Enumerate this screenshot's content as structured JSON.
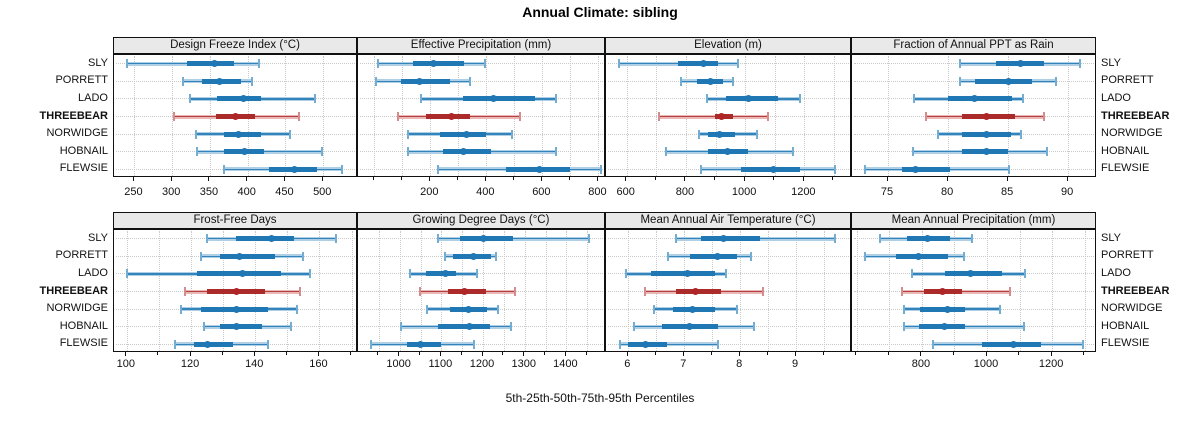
{
  "title": "Annual Climate: sibling",
  "caption": "5th-25th-50th-75th-95th Percentiles",
  "stations": [
    {
      "name": "SLY",
      "bold": false
    },
    {
      "name": "PORRETT",
      "bold": false
    },
    {
      "name": "LADO",
      "bold": false
    },
    {
      "name": "THREEBEAR",
      "bold": true
    },
    {
      "name": "NORWIDGE",
      "bold": false
    },
    {
      "name": "HOBNAIL",
      "bold": false
    },
    {
      "name": "FLEWSIE",
      "bold": false
    }
  ],
  "highlight_station": "THREEBEAR",
  "colors": {
    "normal": {
      "main": "#1f77b4",
      "band": "#aecfe6",
      "cap": "#74add2",
      "dot": "#1f77b4"
    },
    "highlight": {
      "main": "#ab2b2b",
      "band": "#eab7b7",
      "cap": "#d68c8c",
      "dot": "#b02525"
    },
    "grid": "#c9c9c9",
    "strip_bg": "#e9e9e9",
    "border": "#111111"
  },
  "chart_data": [
    {
      "type": "dotplot-intervals",
      "title": "Design Freeze Index (°C)",
      "xlim": [
        223,
        546
      ],
      "ticks": [
        250,
        300,
        350,
        400,
        450,
        500
      ],
      "minor_ticks": [],
      "percentile_levels": [
        5,
        25,
        50,
        75,
        95
      ],
      "series": [
        {
          "station": "SLY",
          "p": [
            240,
            320,
            356,
            382,
            415
          ]
        },
        {
          "station": "PORRETT",
          "p": [
            315,
            340,
            362,
            391,
            406
          ]
        },
        {
          "station": "LADO",
          "p": [
            324,
            359,
            395,
            418,
            489
          ]
        },
        {
          "station": "THREEBEAR",
          "p": [
            303,
            358,
            384,
            410,
            468
          ]
        },
        {
          "station": "NORWIDGE",
          "p": [
            331,
            369,
            388,
            417,
            456
          ]
        },
        {
          "station": "HOBNAIL",
          "p": [
            333,
            368,
            396,
            421,
            498
          ]
        },
        {
          "station": "FLEWSIE",
          "p": [
            369,
            428,
            462,
            492,
            525
          ]
        }
      ]
    },
    {
      "type": "dotplot-intervals",
      "title": "Effective Precipitation (mm)",
      "xlim": [
        -58,
        827
      ],
      "ticks": [
        200,
        400,
        600,
        800
      ],
      "minor_ticks": [
        0,
        100,
        300,
        500,
        700
      ],
      "percentile_levels": [
        5,
        25,
        50,
        75,
        95
      ],
      "series": [
        {
          "station": "SLY",
          "p": [
            15,
            140,
            210,
            320,
            395
          ]
        },
        {
          "station": "PORRETT",
          "p": [
            5,
            95,
            162,
            270,
            340
          ]
        },
        {
          "station": "LADO",
          "p": [
            168,
            317,
            427,
            573,
            650
          ]
        },
        {
          "station": "THREEBEAR",
          "p": [
            85,
            185,
            275,
            340,
            520
          ]
        },
        {
          "station": "NORWIDGE",
          "p": [
            120,
            233,
            329,
            400,
            490
          ]
        },
        {
          "station": "HOBNAIL",
          "p": [
            120,
            245,
            318,
            418,
            650
          ]
        },
        {
          "station": "FLEWSIE",
          "p": [
            227,
            470,
            590,
            697,
            810
          ]
        }
      ]
    },
    {
      "type": "dotplot-intervals",
      "title": "Elevation (m)",
      "xlim": [
        530,
        1361
      ],
      "ticks": [
        600,
        800,
        1000,
        1200
      ],
      "minor_ticks": [
        700,
        900,
        1100,
        1300
      ],
      "percentile_levels": [
        5,
        25,
        50,
        75,
        95
      ],
      "series": [
        {
          "station": "SLY",
          "p": [
            575,
            772,
            858,
            909,
            977
          ]
        },
        {
          "station": "PORRETT",
          "p": [
            785,
            836,
            884,
            926,
            960
          ]
        },
        {
          "station": "LADO",
          "p": [
            870,
            937,
            1011,
            1112,
            1185
          ]
        },
        {
          "station": "THREEBEAR",
          "p": [
            708,
            898,
            920,
            960,
            1078
          ]
        },
        {
          "station": "NORWIDGE",
          "p": [
            845,
            875,
            915,
            966,
            1039
          ]
        },
        {
          "station": "HOBNAIL",
          "p": [
            733,
            875,
            940,
            1010,
            1163
          ]
        },
        {
          "station": "FLEWSIE",
          "p": [
            850,
            985,
            1095,
            1185,
            1303
          ]
        }
      ]
    },
    {
      "type": "dotplot-intervals",
      "title": "Fraction of Annual PPT as Rain",
      "xlim": [
        72,
        92.4
      ],
      "ticks": [
        75,
        80,
        85,
        90
      ],
      "minor_ticks": [],
      "percentile_levels": [
        5,
        25,
        50,
        75,
        95
      ],
      "series": [
        {
          "station": "SLY",
          "p": [
            81,
            84,
            86,
            88,
            91
          ]
        },
        {
          "station": "PORRETT",
          "p": [
            81,
            82.2,
            85,
            87,
            89
          ]
        },
        {
          "station": "LADO",
          "p": [
            77.2,
            80,
            82.2,
            85.3,
            86.2
          ]
        },
        {
          "station": "THREEBEAR",
          "p": [
            78.2,
            81.2,
            83.2,
            85.6,
            88
          ]
        },
        {
          "station": "NORWIDGE",
          "p": [
            79.2,
            81.2,
            83.2,
            85.2,
            86.1
          ]
        },
        {
          "station": "HOBNAIL",
          "p": [
            77.1,
            81.2,
            83.2,
            85,
            88.2
          ]
        },
        {
          "station": "FLEWSIE",
          "p": [
            73.1,
            76.2,
            77.3,
            80.2,
            85.1
          ]
        }
      ]
    },
    {
      "type": "dotplot-intervals",
      "title": "Frost-Free Days",
      "xlim": [
        96,
        172
      ],
      "ticks": [
        100,
        120,
        140,
        160
      ],
      "minor_ticks": [
        110,
        130,
        150,
        170
      ],
      "percentile_levels": [
        5,
        25,
        50,
        75,
        95
      ],
      "series": [
        {
          "station": "SLY",
          "p": [
            125,
            134,
            145,
            152,
            165
          ]
        },
        {
          "station": "PORRETT",
          "p": [
            123,
            129,
            135,
            146,
            155
          ]
        },
        {
          "station": "LADO",
          "p": [
            100,
            122,
            136,
            148,
            157
          ]
        },
        {
          "station": "THREEBEAR",
          "p": [
            118,
            125,
            134,
            143,
            154
          ]
        },
        {
          "station": "NORWIDGE",
          "p": [
            117,
            123,
            134,
            144,
            153
          ]
        },
        {
          "station": "HOBNAIL",
          "p": [
            124,
            129,
            134,
            142,
            151
          ]
        },
        {
          "station": "FLEWSIE",
          "p": [
            115,
            121,
            125,
            133,
            144
          ]
        }
      ]
    },
    {
      "type": "dotplot-intervals",
      "title": "Growing Degree Days (°C)",
      "xlim": [
        900,
        1495
      ],
      "ticks": [
        1000,
        1100,
        1200,
        1300,
        1400
      ],
      "minor_ticks": [
        950,
        1050,
        1150,
        1250,
        1350,
        1450
      ],
      "percentile_levels": [
        5,
        25,
        50,
        75,
        95
      ],
      "series": [
        {
          "station": "SLY",
          "p": [
            1092,
            1144,
            1202,
            1272,
            1454
          ]
        },
        {
          "station": "PORRETT",
          "p": [
            1108,
            1128,
            1176,
            1220,
            1232
          ]
        },
        {
          "station": "LADO",
          "p": [
            1024,
            1064,
            1110,
            1136,
            1186
          ]
        },
        {
          "station": "THREEBEAR",
          "p": [
            1048,
            1116,
            1155,
            1208,
            1276
          ]
        },
        {
          "station": "NORWIDGE",
          "p": [
            1066,
            1120,
            1165,
            1210,
            1236
          ]
        },
        {
          "station": "HOBNAIL",
          "p": [
            1002,
            1092,
            1168,
            1216,
            1268
          ]
        },
        {
          "station": "FLEWSIE",
          "p": [
            930,
            1018,
            1050,
            1100,
            1178
          ]
        }
      ]
    },
    {
      "type": "dotplot-intervals",
      "title": "Mean Annual Air Temperature (°C)",
      "xlim": [
        5.6,
        10.0
      ],
      "ticks": [
        6,
        7,
        8,
        9
      ],
      "minor_ticks": [
        6.5,
        7.5,
        8.5,
        9.5
      ],
      "percentile_levels": [
        5,
        25,
        50,
        75,
        95
      ],
      "series": [
        {
          "station": "SLY",
          "p": [
            6.85,
            7.3,
            7.7,
            8.35,
            9.7
          ]
        },
        {
          "station": "PORRETT",
          "p": [
            6.7,
            7.1,
            7.6,
            7.95,
            8.2
          ]
        },
        {
          "station": "LADO",
          "p": [
            5.95,
            6.4,
            7.05,
            7.55,
            7.75
          ]
        },
        {
          "station": "THREEBEAR",
          "p": [
            6.3,
            6.85,
            7.2,
            7.65,
            8.4
          ]
        },
        {
          "station": "NORWIDGE",
          "p": [
            6.45,
            6.8,
            7.15,
            7.55,
            7.95
          ]
        },
        {
          "station": "HOBNAIL",
          "p": [
            6.1,
            6.6,
            7.1,
            7.6,
            8.25
          ]
        },
        {
          "station": "FLEWSIE",
          "p": [
            5.85,
            6.0,
            6.3,
            6.7,
            7.6
          ]
        }
      ]
    },
    {
      "type": "dotplot-intervals",
      "title": "Mean Annual Precipitation (mm)",
      "xlim": [
        585,
        1338
      ],
      "ticks": [
        800,
        1000,
        1200
      ],
      "minor_ticks": [
        600,
        700,
        900,
        1100,
        1300
      ],
      "percentile_levels": [
        5,
        25,
        50,
        75,
        95
      ],
      "series": [
        {
          "station": "SLY",
          "p": [
            670,
            755,
            818,
            887,
            953
          ]
        },
        {
          "station": "PORRETT",
          "p": [
            625,
            720,
            790,
            880,
            928
          ]
        },
        {
          "station": "LADO",
          "p": [
            770,
            872,
            950,
            1046,
            1117
          ]
        },
        {
          "station": "THREEBEAR",
          "p": [
            740,
            805,
            862,
            923,
            1070
          ]
        },
        {
          "station": "NORWIDGE",
          "p": [
            745,
            795,
            880,
            933,
            1040
          ]
        },
        {
          "station": "HOBNAIL",
          "p": [
            745,
            790,
            870,
            933,
            1115
          ]
        },
        {
          "station": "FLEWSIE",
          "p": [
            835,
            985,
            1080,
            1165,
            1295
          ]
        }
      ]
    }
  ]
}
